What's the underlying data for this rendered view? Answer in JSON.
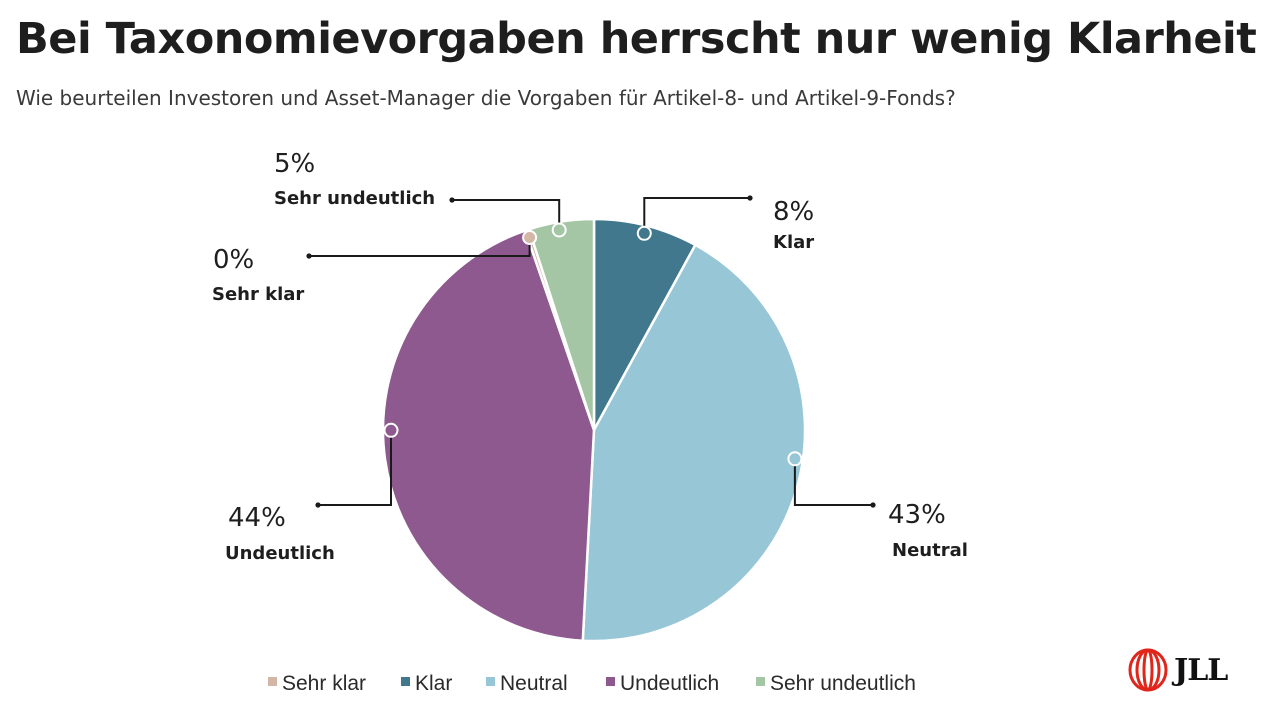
{
  "title": "Bei Taxonomievorgaben herrscht nur wenig Klarheit",
  "subtitle": "Wie beurteilen Investoren und Asset-Manager die Vorgaben für Artikel-8- und Artikel-9-Fonds?",
  "brand": {
    "logo_text": "JLL",
    "logo_color": "#e0251b"
  },
  "chart_data": {
    "type": "pie",
    "title": "Bei Taxonomievorgaben herrscht nur wenig Klarheit",
    "legend_position": "bottom",
    "slices": [
      {
        "label": "Klar",
        "value": 8,
        "value_label": "8%",
        "color": "#41788e"
      },
      {
        "label": "Neutral",
        "value": 43,
        "value_label": "43%",
        "color": "#97c6d6"
      },
      {
        "label": "Undeutlich",
        "value": 44,
        "value_label": "44%",
        "color": "#8e598e"
      },
      {
        "label": "Sehr klar",
        "value": 0.3,
        "value_label": "0%",
        "color": "#d2b7a6"
      },
      {
        "label": "Sehr undeutlich",
        "value": 5,
        "value_label": "5%",
        "color": "#a4c6a5"
      }
    ],
    "legend": [
      {
        "label": "Sehr klar",
        "color": "#d2b7a6"
      },
      {
        "label": "Klar",
        "color": "#41788e"
      },
      {
        "label": "Neutral",
        "color": "#97c6d6"
      },
      {
        "label": "Undeutlich",
        "color": "#8e598e"
      },
      {
        "label": "Sehr undeutlich",
        "color": "#a4c6a5"
      }
    ]
  }
}
